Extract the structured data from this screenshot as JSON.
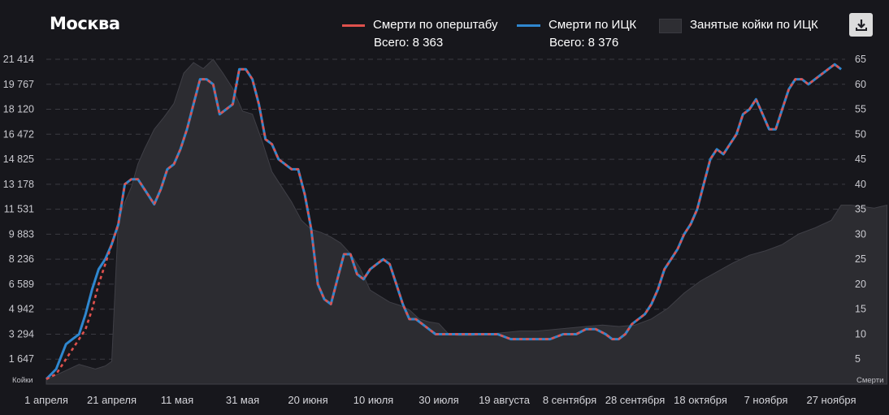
{
  "title": "Москва",
  "legend": {
    "ops": {
      "label": "Смерти по оперштабу",
      "total": "Всего: 8 363",
      "color": "#e0514d"
    },
    "ick": {
      "label": "Смерти по ИЦК",
      "total": "Всего: 8 376",
      "color": "#2f87cf"
    },
    "beds": {
      "label": "Занятые койки по ИЦК",
      "color": "#2e2e33"
    }
  },
  "download_icon": "download-icon",
  "chart_data": {
    "type": "line",
    "x_ticks": [
      "1 апреля",
      "21 апреля",
      "11 мая",
      "31 мая",
      "20 июня",
      "10 июля",
      "30 июля",
      "19 августа",
      "8 сентября",
      "28 сентября",
      "18 октября",
      "7 ноября",
      "27 ноября"
    ],
    "x_start": "2020-04-01",
    "x_end": "2020-11-27",
    "left_axis": {
      "label": "Койки",
      "ticks": [
        "1 647",
        "3 294",
        "4 942",
        "6 589",
        "8 236",
        "9 883",
        "11 531",
        "13 178",
        "14 825",
        "16 472",
        "18 120",
        "19 767",
        "21 414"
      ],
      "range": [
        0,
        21414
      ]
    },
    "right_axis": {
      "label": "Смерти",
      "ticks": [
        "5",
        "10",
        "15",
        "20",
        "25",
        "30",
        "35",
        "40",
        "45",
        "50",
        "55",
        "60",
        "65"
      ],
      "range": [
        0,
        65
      ]
    },
    "grid": true,
    "series": [
      {
        "name": "Занятые койки по ИЦК",
        "type": "area",
        "axis": "left",
        "points": [
          [
            0,
            300
          ],
          [
            5,
            800
          ],
          [
            10,
            1300
          ],
          [
            15,
            1000
          ],
          [
            18,
            1200
          ],
          [
            20,
            1500
          ],
          [
            22,
            10800
          ],
          [
            24,
            12000
          ],
          [
            26,
            13000
          ],
          [
            28,
            14500
          ],
          [
            30,
            15500
          ],
          [
            33,
            16800
          ],
          [
            36,
            17600
          ],
          [
            39,
            18500
          ],
          [
            42,
            20500
          ],
          [
            45,
            21200
          ],
          [
            48,
            20800
          ],
          [
            51,
            21414
          ],
          [
            54,
            20500
          ],
          [
            57,
            19500
          ],
          [
            60,
            18000
          ],
          [
            63,
            17800
          ],
          [
            66,
            16000
          ],
          [
            69,
            14000
          ],
          [
            72,
            13000
          ],
          [
            75,
            12000
          ],
          [
            78,
            10800
          ],
          [
            81,
            10200
          ],
          [
            84,
            10000
          ],
          [
            87,
            9700
          ],
          [
            90,
            9300
          ],
          [
            93,
            8600
          ],
          [
            96,
            7600
          ],
          [
            99,
            6200
          ],
          [
            102,
            5800
          ],
          [
            105,
            5400
          ],
          [
            108,
            5200
          ],
          [
            111,
            4900
          ],
          [
            114,
            4300
          ],
          [
            117,
            4100
          ],
          [
            120,
            4000
          ],
          [
            123,
            3300
          ],
          [
            126,
            3200
          ],
          [
            130,
            3200
          ],
          [
            135,
            3300
          ],
          [
            140,
            3400
          ],
          [
            145,
            3500
          ],
          [
            150,
            3500
          ],
          [
            155,
            3600
          ],
          [
            160,
            3700
          ],
          [
            165,
            3800
          ],
          [
            170,
            3900
          ],
          [
            175,
            3800
          ],
          [
            180,
            3900
          ],
          [
            185,
            4300
          ],
          [
            190,
            5000
          ],
          [
            195,
            6000
          ],
          [
            200,
            6800
          ],
          [
            205,
            7400
          ],
          [
            210,
            8000
          ],
          [
            215,
            8500
          ],
          [
            220,
            8800
          ],
          [
            225,
            9200
          ],
          [
            230,
            9900
          ],
          [
            235,
            10300
          ],
          [
            240,
            10800
          ],
          [
            243,
            11800
          ],
          [
            246,
            11800
          ],
          [
            250,
            11700
          ],
          [
            253,
            11600
          ],
          [
            257,
            11800
          ]
        ]
      },
      {
        "name": "Смерти по ИЦК",
        "axis": "right",
        "points": [
          [
            0,
            1
          ],
          [
            3,
            3
          ],
          [
            6,
            8
          ],
          [
            8,
            9
          ],
          [
            10,
            10
          ],
          [
            12,
            14
          ],
          [
            14,
            19
          ],
          [
            16,
            23
          ],
          [
            18,
            25
          ],
          [
            20,
            28
          ],
          [
            22,
            32
          ],
          [
            24,
            40
          ],
          [
            26,
            41
          ],
          [
            28,
            41
          ],
          [
            31,
            38
          ],
          [
            33,
            36
          ],
          [
            35,
            39
          ],
          [
            37,
            43
          ],
          [
            39,
            44
          ],
          [
            41,
            47
          ],
          [
            43,
            51
          ],
          [
            45,
            56
          ],
          [
            47,
            61
          ],
          [
            49,
            61
          ],
          [
            51,
            60
          ],
          [
            53,
            54
          ],
          [
            55,
            55
          ],
          [
            57,
            56
          ],
          [
            59,
            63
          ],
          [
            61,
            63
          ],
          [
            63,
            61
          ],
          [
            65,
            56
          ],
          [
            67,
            49
          ],
          [
            69,
            48
          ],
          [
            71,
            45
          ],
          [
            73,
            44
          ],
          [
            75,
            43
          ],
          [
            77,
            43
          ],
          [
            79,
            38
          ],
          [
            81,
            31
          ],
          [
            83,
            20
          ],
          [
            85,
            17
          ],
          [
            87,
            16
          ],
          [
            89,
            21
          ],
          [
            91,
            26
          ],
          [
            93,
            26
          ],
          [
            95,
            22
          ],
          [
            97,
            21
          ],
          [
            99,
            23
          ],
          [
            101,
            24
          ],
          [
            103,
            25
          ],
          [
            105,
            24
          ],
          [
            107,
            20
          ],
          [
            109,
            16
          ],
          [
            111,
            13
          ],
          [
            113,
            13
          ],
          [
            115,
            12
          ],
          [
            117,
            11
          ],
          [
            119,
            10
          ],
          [
            121,
            10
          ],
          [
            123,
            10
          ],
          [
            126,
            10
          ],
          [
            130,
            10
          ],
          [
            134,
            10
          ],
          [
            138,
            10
          ],
          [
            142,
            9
          ],
          [
            146,
            9
          ],
          [
            150,
            9
          ],
          [
            154,
            9
          ],
          [
            158,
            10
          ],
          [
            162,
            10
          ],
          [
            165,
            11
          ],
          [
            168,
            11
          ],
          [
            171,
            10
          ],
          [
            173,
            9
          ],
          [
            175,
            9
          ],
          [
            177,
            10
          ],
          [
            179,
            12
          ],
          [
            181,
            13
          ],
          [
            183,
            14
          ],
          [
            185,
            16
          ],
          [
            187,
            19
          ],
          [
            189,
            23
          ],
          [
            191,
            25
          ],
          [
            193,
            27
          ],
          [
            195,
            30
          ],
          [
            197,
            32
          ],
          [
            199,
            35
          ],
          [
            201,
            40
          ],
          [
            203,
            45
          ],
          [
            205,
            47
          ],
          [
            207,
            46
          ],
          [
            209,
            48
          ],
          [
            211,
            50
          ],
          [
            213,
            54
          ],
          [
            215,
            55
          ],
          [
            217,
            57
          ],
          [
            219,
            54
          ],
          [
            221,
            51
          ],
          [
            223,
            51
          ],
          [
            225,
            55
          ],
          [
            227,
            59
          ],
          [
            229,
            61
          ],
          [
            231,
            61
          ],
          [
            233,
            60
          ],
          [
            235,
            61
          ],
          [
            237,
            62
          ],
          [
            239,
            63
          ],
          [
            241,
            64
          ],
          [
            243,
            63
          ]
        ]
      },
      {
        "name": "Смерти по оперштабу",
        "axis": "right",
        "points": [
          [
            0,
            1
          ],
          [
            3,
            2
          ],
          [
            6,
            5
          ],
          [
            8,
            7
          ],
          [
            10,
            9
          ],
          [
            12,
            11
          ],
          [
            14,
            15
          ],
          [
            16,
            20
          ],
          [
            18,
            24
          ],
          [
            20,
            28
          ],
          [
            22,
            32
          ],
          [
            24,
            40
          ],
          [
            26,
            41
          ],
          [
            28,
            41
          ],
          [
            31,
            38
          ],
          [
            33,
            36
          ],
          [
            35,
            39
          ],
          [
            37,
            43
          ],
          [
            39,
            44
          ],
          [
            41,
            47
          ],
          [
            43,
            51
          ],
          [
            45,
            56
          ],
          [
            47,
            61
          ],
          [
            49,
            61
          ],
          [
            51,
            60
          ],
          [
            53,
            54
          ],
          [
            55,
            55
          ],
          [
            57,
            56
          ],
          [
            59,
            63
          ],
          [
            61,
            63
          ],
          [
            63,
            61
          ],
          [
            65,
            56
          ],
          [
            67,
            49
          ],
          [
            69,
            48
          ],
          [
            71,
            45
          ],
          [
            73,
            44
          ],
          [
            75,
            43
          ],
          [
            77,
            43
          ],
          [
            79,
            38
          ],
          [
            81,
            31
          ],
          [
            83,
            20
          ],
          [
            85,
            17
          ],
          [
            87,
            16
          ],
          [
            89,
            21
          ],
          [
            91,
            26
          ],
          [
            93,
            26
          ],
          [
            95,
            22
          ],
          [
            97,
            21
          ],
          [
            99,
            23
          ],
          [
            101,
            24
          ],
          [
            103,
            25
          ],
          [
            105,
            24
          ],
          [
            107,
            20
          ],
          [
            109,
            16
          ],
          [
            111,
            13
          ],
          [
            113,
            13
          ],
          [
            115,
            12
          ],
          [
            117,
            11
          ],
          [
            119,
            10
          ],
          [
            121,
            10
          ],
          [
            123,
            10
          ],
          [
            126,
            10
          ],
          [
            130,
            10
          ],
          [
            134,
            10
          ],
          [
            138,
            10
          ],
          [
            142,
            9
          ],
          [
            146,
            9
          ],
          [
            150,
            9
          ],
          [
            154,
            9
          ],
          [
            158,
            10
          ],
          [
            162,
            10
          ],
          [
            165,
            11
          ],
          [
            168,
            11
          ],
          [
            171,
            10
          ],
          [
            173,
            9
          ],
          [
            175,
            9
          ],
          [
            177,
            10
          ],
          [
            179,
            12
          ],
          [
            181,
            13
          ],
          [
            183,
            14
          ],
          [
            185,
            16
          ],
          [
            187,
            19
          ],
          [
            189,
            23
          ],
          [
            191,
            25
          ],
          [
            193,
            27
          ],
          [
            195,
            30
          ],
          [
            197,
            32
          ],
          [
            199,
            35
          ],
          [
            201,
            40
          ],
          [
            203,
            45
          ],
          [
            205,
            47
          ],
          [
            207,
            46
          ],
          [
            209,
            48
          ],
          [
            211,
            50
          ],
          [
            213,
            54
          ],
          [
            215,
            55
          ],
          [
            217,
            57
          ],
          [
            219,
            54
          ],
          [
            221,
            51
          ],
          [
            223,
            51
          ],
          [
            225,
            55
          ],
          [
            227,
            59
          ],
          [
            229,
            61
          ],
          [
            231,
            61
          ],
          [
            233,
            60
          ],
          [
            235,
            61
          ],
          [
            237,
            62
          ],
          [
            239,
            63
          ],
          [
            241,
            64
          ],
          [
            243,
            63
          ]
        ]
      }
    ]
  }
}
